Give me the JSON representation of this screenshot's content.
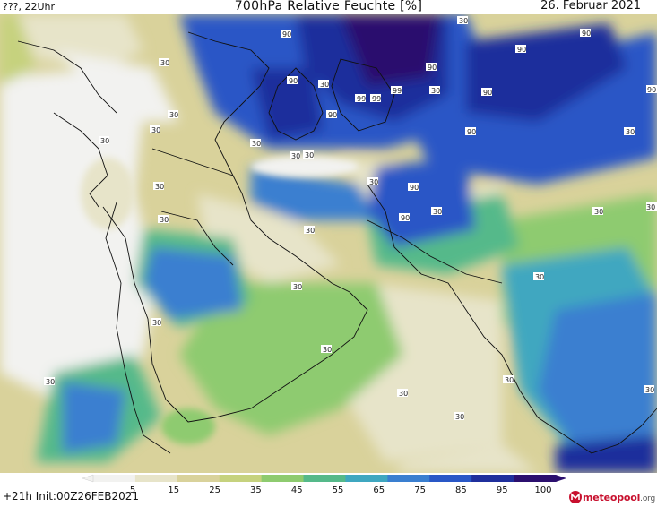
{
  "header": {
    "left": "???, 22Uhr",
    "title": "700hPa Relative Feuchte [%]",
    "date": "26. Februar 2021"
  },
  "footer": {
    "run": "+21h  Init:00Z26FEB2021",
    "logo": "meteopool",
    "logo_suffix": ".org"
  },
  "legend": {
    "ticks": [
      "5",
      "15",
      "25",
      "35",
      "45",
      "55",
      "65",
      "75",
      "85",
      "95",
      "100"
    ],
    "colors": [
      "#f2f2f0",
      "#e7e4c9",
      "#d9d29b",
      "#c6d27e",
      "#8ecb6f",
      "#55b98a",
      "#3fa7c0",
      "#3a7fd0",
      "#2957c6",
      "#1f2f9c",
      "#2b0f6e"
    ]
  },
  "map": {
    "contour_labels_30": [
      "30",
      "30",
      "30",
      "30",
      "30",
      "30",
      "30",
      "30",
      "30",
      "30",
      "30",
      "30",
      "30",
      "30",
      "30",
      "30",
      "30",
      "30",
      "30",
      "30",
      "30",
      "30",
      "30",
      "30",
      "30",
      "30",
      "30"
    ],
    "contour_labels_90": [
      "90",
      "90",
      "90",
      "90",
      "90",
      "90",
      "90",
      "90",
      "90",
      "90",
      "90"
    ],
    "contour_labels_99": [
      "99",
      "99",
      "99"
    ]
  }
}
